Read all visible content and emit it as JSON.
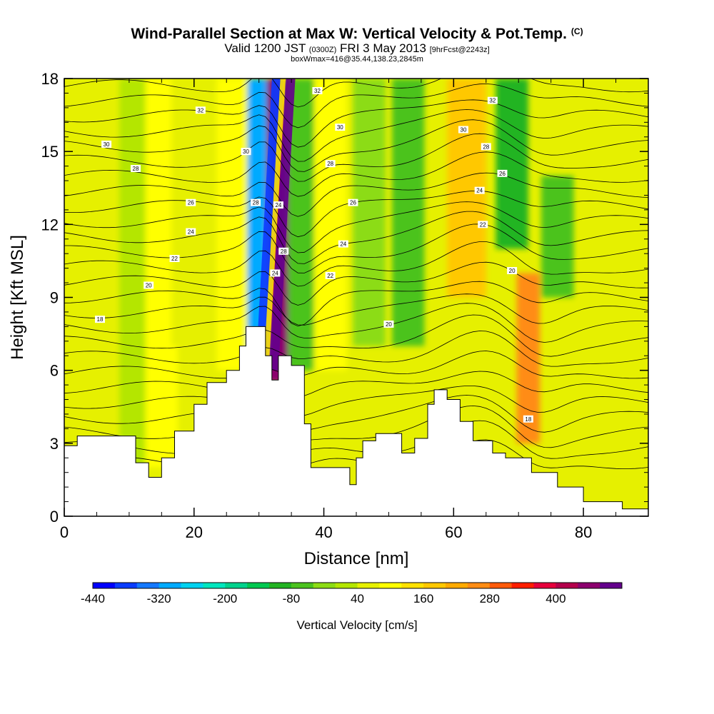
{
  "chart_data": {
    "type": "heatmap",
    "title": "Wind-Parallel Section at Max W: Vertical Velocity & Pot.Temp.",
    "title_mark": "(C)",
    "subtitle_main": "Valid 1200 JST",
    "subtitle_utc": "(0300Z)",
    "subtitle_date": "FRI 3 May 2013",
    "subtitle_fcst": "[9hrFcst@2243z]",
    "subtitle2": "boxWmax=416@35.44,138.23,2845m",
    "xlabel": "Distance [nm]",
    "ylabel": "Height [Kft MSL]",
    "xlim": [
      0,
      90
    ],
    "ylim": [
      0,
      18
    ],
    "x_ticks": [
      "0",
      "20",
      "40",
      "60",
      "80"
    ],
    "y_ticks": [
      "0",
      "3",
      "6",
      "9",
      "12",
      "15",
      "18"
    ],
    "colorbar": {
      "label": "Vertical Velocity [cm/s]",
      "levels": [
        -440,
        -400,
        -360,
        -320,
        -280,
        -240,
        -200,
        -160,
        -120,
        -80,
        -40,
        0,
        40,
        80,
        120,
        160,
        200,
        240,
        280,
        320,
        360,
        400,
        440,
        480
      ],
      "tick_labels": [
        "-440",
        "-320",
        "-200",
        "-80",
        "40",
        "160",
        "280",
        "400"
      ],
      "colors": [
        "#0000ff",
        "#0a3cff",
        "#1478ff",
        "#00aaff",
        "#00d2f0",
        "#00e6be",
        "#00d28c",
        "#00c850",
        "#22b422",
        "#4bc31e",
        "#8cdc14",
        "#b4e600",
        "#e6f000",
        "#ffff00",
        "#ffe100",
        "#ffc800",
        "#ffaa00",
        "#ff8c14",
        "#ff5a0a",
        "#ff1e00",
        "#e6003c",
        "#b4004b",
        "#8c006e",
        "#64008c"
      ]
    },
    "w_bands": [
      {
        "x": 3,
        "z_bottom": 6,
        "z_top": 18,
        "w": 40
      },
      {
        "x": 10.5,
        "z_bottom": 0,
        "z_top": 18,
        "w": -20
      },
      {
        "x": 15,
        "z_bottom": 2,
        "z_top": 18,
        "w": 60
      },
      {
        "x": 19,
        "z_bottom": 7,
        "z_top": 18,
        "w": 30
      },
      {
        "x": 26,
        "z_bottom": 6,
        "z_top": 18,
        "w": 60
      },
      {
        "x": 29.8,
        "z_bottom": 6.5,
        "z_top": 18,
        "w": -340
      },
      {
        "x": 32.9,
        "z_bottom": 5.5,
        "z_top": 18,
        "w": 420
      },
      {
        "x": 36.5,
        "z_bottom": 6,
        "z_top": 18,
        "w": -100
      },
      {
        "x": 41,
        "z_bottom": 6,
        "z_top": 18,
        "w": 60
      },
      {
        "x": 47,
        "z_bottom": 7,
        "z_top": 18,
        "w": -40
      },
      {
        "x": 53,
        "z_bottom": 7,
        "z_top": 18,
        "w": -100
      },
      {
        "x": 62,
        "z_bottom": 9,
        "z_top": 18,
        "w": 160
      },
      {
        "x": 69,
        "z_bottom": 11,
        "z_top": 18,
        "w": -120
      },
      {
        "x": 71.5,
        "z_bottom": 3,
        "z_top": 10,
        "w": 220
      },
      {
        "x": 76,
        "z_bottom": 9,
        "z_top": 14,
        "w": -80
      },
      {
        "x": 84,
        "z_bottom": 2,
        "z_top": 18,
        "w": 50
      }
    ],
    "terrain_kft": [
      {
        "x": 0,
        "z": 2.9
      },
      {
        "x": 2,
        "z": 3.3
      },
      {
        "x": 9,
        "z": 3.3
      },
      {
        "x": 11,
        "z": 2.2
      },
      {
        "x": 13,
        "z": 1.6
      },
      {
        "x": 15,
        "z": 2.4
      },
      {
        "x": 17,
        "z": 3.5
      },
      {
        "x": 20,
        "z": 4.6
      },
      {
        "x": 22,
        "z": 5.5
      },
      {
        "x": 25,
        "z": 6.0
      },
      {
        "x": 27,
        "z": 7.0
      },
      {
        "x": 28,
        "z": 7.8
      },
      {
        "x": 30,
        "z": 7.8
      },
      {
        "x": 31,
        "z": 6.6
      },
      {
        "x": 32,
        "z": 5.6
      },
      {
        "x": 33,
        "z": 6.6
      },
      {
        "x": 35,
        "z": 6.2
      },
      {
        "x": 37,
        "z": 3.8
      },
      {
        "x": 38,
        "z": 2.0
      },
      {
        "x": 43,
        "z": 2.0
      },
      {
        "x": 44,
        "z": 1.3
      },
      {
        "x": 45,
        "z": 2.4
      },
      {
        "x": 46,
        "z": 3.1
      },
      {
        "x": 48,
        "z": 3.4
      },
      {
        "x": 50,
        "z": 3.4
      },
      {
        "x": 52,
        "z": 2.6
      },
      {
        "x": 54,
        "z": 3.2
      },
      {
        "x": 56,
        "z": 4.6
      },
      {
        "x": 57,
        "z": 5.2
      },
      {
        "x": 59,
        "z": 4.8
      },
      {
        "x": 61,
        "z": 3.9
      },
      {
        "x": 63,
        "z": 3.1
      },
      {
        "x": 66,
        "z": 2.6
      },
      {
        "x": 68,
        "z": 2.4
      },
      {
        "x": 72,
        "z": 1.8
      },
      {
        "x": 76,
        "z": 1.2
      },
      {
        "x": 80,
        "z": 0.6
      },
      {
        "x": 84,
        "z": 0.6
      },
      {
        "x": 86,
        "z": 0.3
      },
      {
        "x": 90,
        "z": 0.3
      }
    ],
    "theta_contour_labels": [
      {
        "text": "18",
        "x": 5.5,
        "z": 8.1
      },
      {
        "text": "20",
        "x": 13,
        "z": 9.5
      },
      {
        "text": "22",
        "x": 17,
        "z": 10.6
      },
      {
        "text": "24",
        "x": 19.5,
        "z": 11.7
      },
      {
        "text": "26",
        "x": 19.5,
        "z": 12.9
      },
      {
        "text": "28",
        "x": 11,
        "z": 14.3
      },
      {
        "text": "30",
        "x": 6.5,
        "z": 15.3
      },
      {
        "text": "32",
        "x": 21,
        "z": 16.7
      },
      {
        "text": "30",
        "x": 28,
        "z": 15.0
      },
      {
        "text": "28",
        "x": 29.5,
        "z": 12.9
      },
      {
        "text": "24",
        "x": 33,
        "z": 12.8
      },
      {
        "text": "28",
        "x": 33.8,
        "z": 10.9
      },
      {
        "text": "24",
        "x": 32.5,
        "z": 10.0
      },
      {
        "text": "32",
        "x": 39,
        "z": 17.5
      },
      {
        "text": "30",
        "x": 42.5,
        "z": 16.0
      },
      {
        "text": "28",
        "x": 41,
        "z": 14.5
      },
      {
        "text": "26",
        "x": 44.5,
        "z": 12.9
      },
      {
        "text": "24",
        "x": 43,
        "z": 11.2
      },
      {
        "text": "22",
        "x": 41,
        "z": 9.9
      },
      {
        "text": "20",
        "x": 50,
        "z": 7.9
      },
      {
        "text": "32",
        "x": 66,
        "z": 17.1
      },
      {
        "text": "30",
        "x": 61.5,
        "z": 15.9
      },
      {
        "text": "28",
        "x": 65,
        "z": 15.2
      },
      {
        "text": "26",
        "x": 67.5,
        "z": 14.1
      },
      {
        "text": "24",
        "x": 64,
        "z": 13.4
      },
      {
        "text": "22",
        "x": 64.5,
        "z": 12.0
      },
      {
        "text": "20",
        "x": 69,
        "z": 10.1
      },
      {
        "text": "18",
        "x": 71.5,
        "z": 4.0
      }
    ]
  }
}
